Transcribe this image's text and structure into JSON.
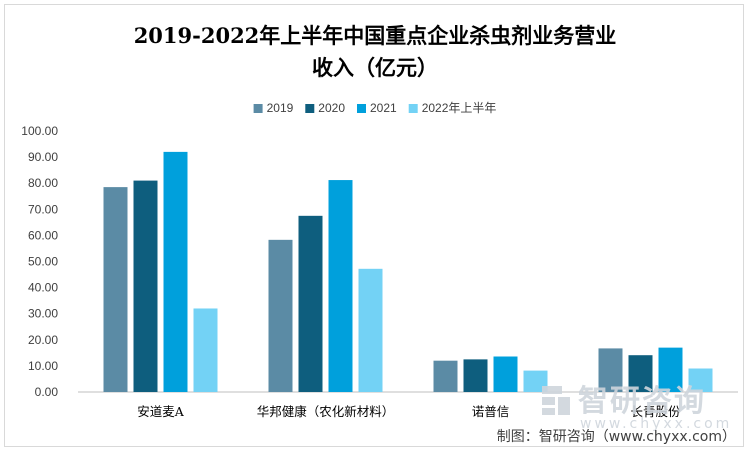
{
  "chart_data": {
    "type": "bar",
    "title_lines": [
      "2019-2022年上半年中国重点企业杀虫剂业务营业",
      "收入（亿元）"
    ],
    "categories": [
      "安道麦A",
      "华邦健康（农化新材料）",
      "诺普信",
      "长青股份"
    ],
    "series": [
      {
        "name": "2019",
        "color": "#5b8ba5",
        "values": [
          78.5,
          58.3,
          12.0,
          16.7
        ]
      },
      {
        "name": "2020",
        "color": "#0e5e7e",
        "values": [
          81.0,
          67.5,
          12.5,
          14.1
        ]
      },
      {
        "name": "2021",
        "color": "#00a0dc",
        "values": [
          92.0,
          81.2,
          13.6,
          17.0
        ]
      },
      {
        "name": "2022年上半年",
        "color": "#73d2f5",
        "values": [
          32.0,
          47.2,
          8.2,
          9.0
        ]
      }
    ],
    "ylim": [
      0,
      100
    ],
    "yticks": [
      "0.00",
      "10.00",
      "20.00",
      "30.00",
      "40.00",
      "50.00",
      "60.00",
      "70.00",
      "80.00",
      "90.00",
      "100.00"
    ],
    "grid": false,
    "legend_position": "top"
  },
  "watermark": {
    "name": "智研咨询",
    "url": "www.chyxx.com"
  },
  "source": "制图：智研咨询（www.chyxx.com）"
}
